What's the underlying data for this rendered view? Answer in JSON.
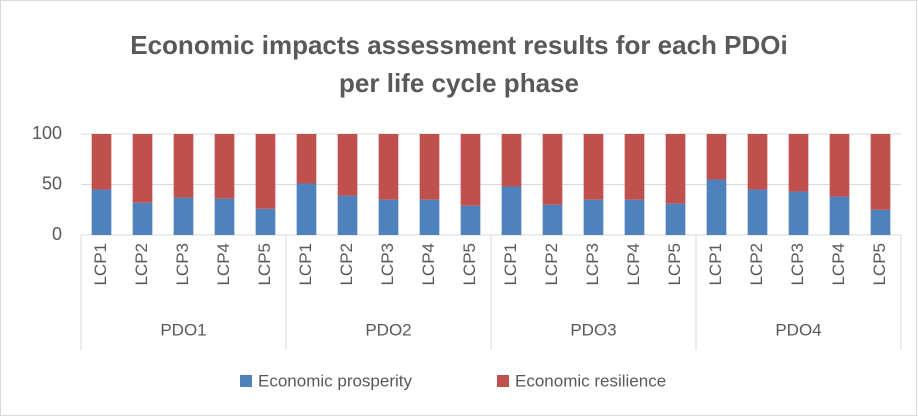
{
  "chart_data": {
    "type": "stacked_bar",
    "title": "Economic impacts assessment results for each PDOi per life cycle phase",
    "groups": [
      {
        "name": "PDO1",
        "categories": [
          "LCP1",
          "LCP2",
          "LCP3",
          "LCP4",
          "LCP5"
        ]
      },
      {
        "name": "PDO2",
        "categories": [
          "LCP1",
          "LCP2",
          "LCP3",
          "LCP4",
          "LCP5"
        ]
      },
      {
        "name": "PDO3",
        "categories": [
          "LCP1",
          "LCP2",
          "LCP3",
          "LCP4",
          "LCP5"
        ]
      },
      {
        "name": "PDO4",
        "categories": [
          "LCP1",
          "LCP2",
          "LCP3",
          "LCP4",
          "LCP5"
        ]
      }
    ],
    "series": [
      {
        "name": "Economic prosperity",
        "color": "#4f81bd",
        "values": [
          45,
          32,
          37,
          36,
          26,
          51,
          39,
          35,
          35,
          29,
          48,
          30,
          35,
          35,
          31,
          55,
          45,
          43,
          38,
          25
        ]
      },
      {
        "name": "Economic resilience",
        "color": "#c0504d",
        "values": [
          55,
          68,
          63,
          64,
          74,
          49,
          61,
          65,
          65,
          71,
          52,
          70,
          65,
          65,
          69,
          45,
          55,
          57,
          62,
          75
        ]
      }
    ],
    "ylim": [
      0,
      100
    ],
    "yticks": [
      0,
      50,
      100
    ],
    "grid": true,
    "legend": "bottom"
  }
}
